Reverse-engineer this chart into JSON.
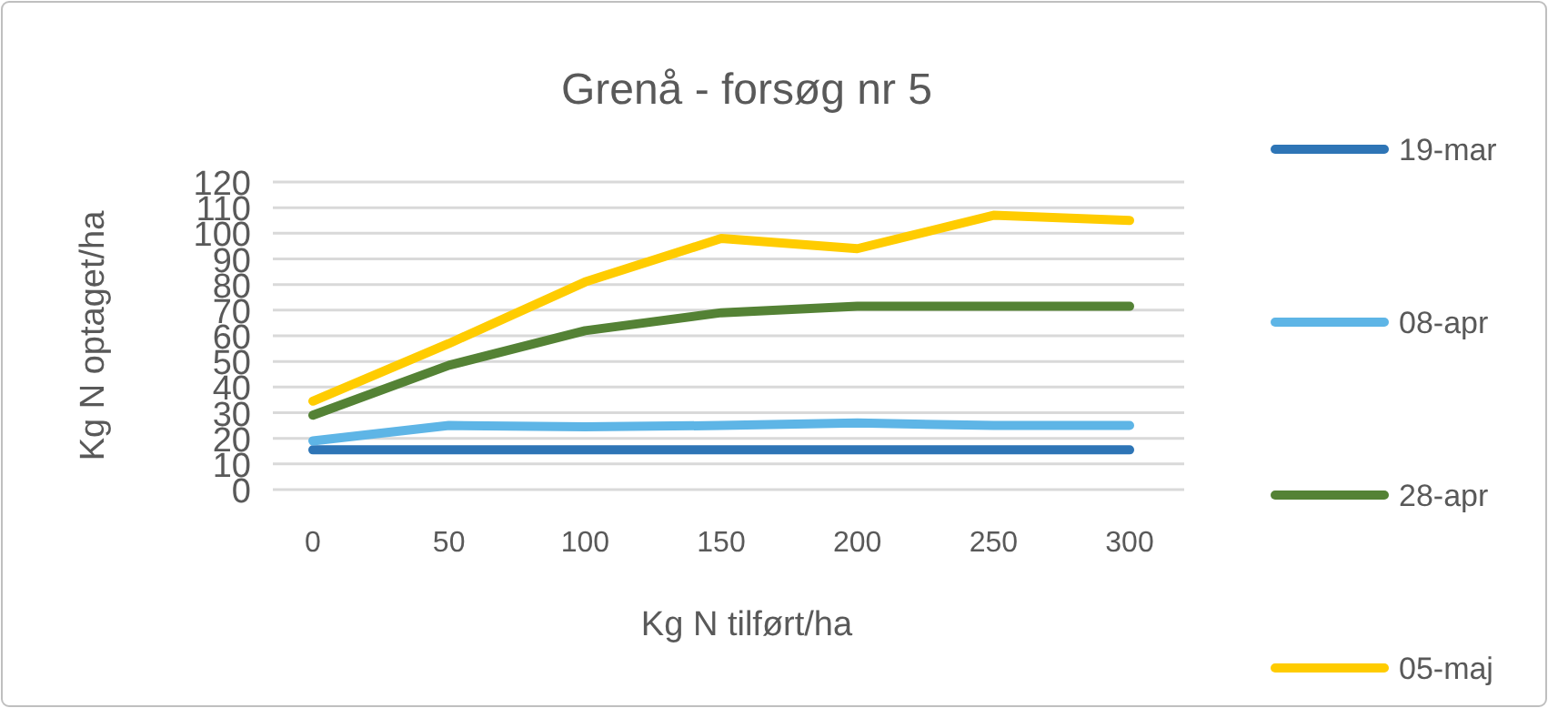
{
  "chart_data": {
    "type": "line",
    "title": "Grenå - forsøg nr 5",
    "xlabel": "Kg N tilført/ha",
    "ylabel": "Kg N optaget/ha",
    "categories": [
      "0",
      "50",
      "100",
      "150",
      "200",
      "250",
      "300"
    ],
    "series": [
      {
        "name": "19-mar",
        "color": "#2e75b6",
        "values": [
          15.5,
          15.5,
          15.5,
          15.5,
          15.5,
          15.5,
          15.5
        ]
      },
      {
        "name": "08-apr",
        "color": "#5eb5e6",
        "values": [
          19,
          25,
          24.5,
          25,
          26,
          25,
          25
        ]
      },
      {
        "name": "28-apr",
        "color": "#548235",
        "values": [
          29,
          48.5,
          62,
          69,
          71.5,
          71.5,
          71.5
        ]
      },
      {
        "name": "05-maj",
        "color": "#ffcc00",
        "values": [
          34.5,
          57,
          81,
          98,
          94,
          107,
          105
        ]
      }
    ],
    "ylim": [
      0,
      120
    ],
    "yticks": [
      0,
      10,
      20,
      30,
      40,
      50,
      60,
      70,
      80,
      90,
      100,
      110,
      120
    ],
    "grid": "y",
    "legend": "right",
    "marker": "none",
    "line_style": "solid"
  }
}
